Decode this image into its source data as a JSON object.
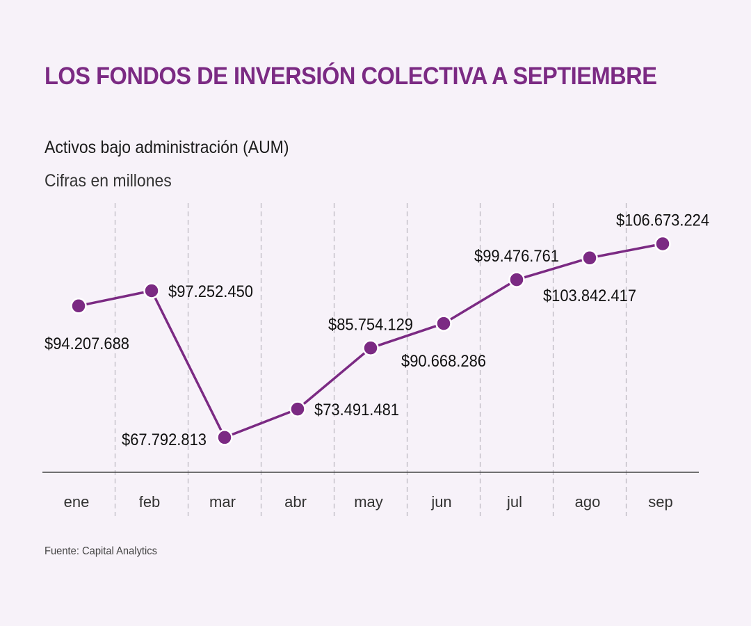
{
  "header": {
    "title": "LOS FONDOS DE INVERSIÓN COLECTIVA A SEPTIEMBRE",
    "subtitle": "Activos bajo administración (AUM)",
    "units": "Cifras en millones"
  },
  "footer": {
    "source": "Fuente: Capital Analytics"
  },
  "colors": {
    "accent": "#7b2a83",
    "background": "#f7f2f9",
    "text": "#111111",
    "grid": "#b9b4bd"
  },
  "chart_data": {
    "type": "line",
    "title": "Activos bajo administración (AUM)",
    "subtitle": "Cifras en millones",
    "xlabel": "",
    "ylabel": "",
    "categories": [
      "ene",
      "feb",
      "mar",
      "abr",
      "may",
      "jun",
      "jul",
      "ago",
      "sep"
    ],
    "series": [
      {
        "name": "AUM",
        "values": [
          94207688,
          97252450,
          67792813,
          73491481,
          85754129,
          90668286,
          99476761,
          103842417,
          106673224
        ],
        "labels": [
          "$94.207.688",
          "$97.252.450",
          "$67.792.813",
          "$73.491.481",
          "$85.754.129",
          "$90.668.286",
          "$99.476.761",
          "$103.842.417",
          "$106.673.224"
        ],
        "label_positions": [
          "below",
          "right",
          "left",
          "right",
          "above",
          "below",
          "above",
          "below",
          "above"
        ]
      }
    ],
    "ylim": [
      60800000,
      110000000
    ],
    "y_axis_visible": false,
    "grid": "vertical-dashed",
    "legend": "none"
  }
}
